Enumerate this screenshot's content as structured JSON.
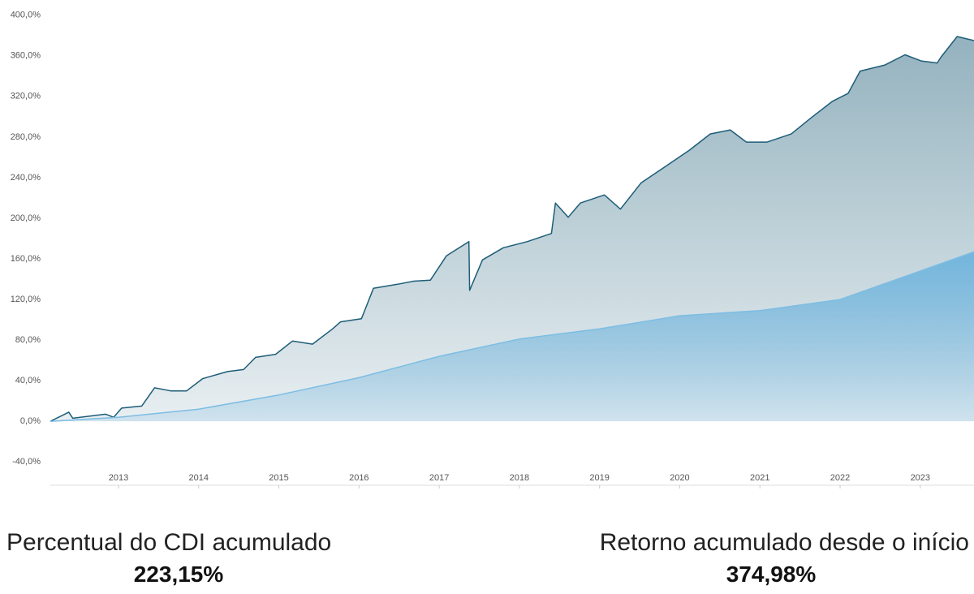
{
  "chart_data": {
    "type": "area",
    "xlim": [
      2012.15,
      2023.67
    ],
    "xticks": [
      2013,
      2014,
      2015,
      2016,
      2017,
      2018,
      2019,
      2020,
      2021,
      2022,
      2023
    ],
    "ylim": [
      -63,
      407
    ],
    "yticks": [
      {
        "value": -40,
        "label": "-40,0%"
      },
      {
        "value": 0,
        "label": "0,0%"
      },
      {
        "value": 40,
        "label": "40,0%"
      },
      {
        "value": 80,
        "label": "80,0%"
      },
      {
        "value": 120,
        "label": "120,0%"
      },
      {
        "value": 160,
        "label": "160,0%"
      },
      {
        "value": 200,
        "label": "200,0%"
      },
      {
        "value": 240,
        "label": "240,0%"
      },
      {
        "value": 280,
        "label": "280,0%"
      },
      {
        "value": 320,
        "label": "320,0%"
      },
      {
        "value": 360,
        "label": "360,0%"
      },
      {
        "value": 400,
        "label": "400,0%"
      }
    ],
    "grid": false,
    "series": [
      {
        "color": "#1d5d78",
        "fill": "#8eaebb",
        "x": [
          2012.15,
          2012.33,
          2012.38,
          2012.43,
          2012.84,
          2012.94,
          2013.04,
          2013.29,
          2013.45,
          2013.65,
          2013.85,
          2014.05,
          2014.36,
          2014.56,
          2014.71,
          2014.96,
          2015.17,
          2015.42,
          2015.67,
          2015.77,
          2016.03,
          2016.18,
          2016.48,
          2016.68,
          2016.89,
          2017.09,
          2017.37,
          2017.38,
          2017.54,
          2017.8,
          2018.1,
          2018.4,
          2018.45,
          2018.61,
          2018.76,
          2019.06,
          2019.26,
          2019.52,
          2019.82,
          2020.12,
          2020.38,
          2020.63,
          2020.83,
          2021.09,
          2021.39,
          2021.64,
          2021.9,
          2022.1,
          2022.25,
          2022.56,
          2022.81,
          2023.01,
          2023.21,
          2023.26,
          2023.46,
          2023.67
        ],
        "values": [
          0,
          7,
          9,
          3,
          7,
          4,
          13,
          15,
          33,
          30,
          30,
          42,
          49,
          51,
          63,
          66,
          79,
          76,
          91,
          98,
          101,
          131,
          135,
          138,
          139,
          163,
          177,
          129,
          159,
          171,
          177,
          185,
          215,
          201,
          215,
          223,
          209,
          235,
          251,
          267,
          283,
          287,
          275,
          275,
          283,
          299,
          315,
          323,
          345,
          351,
          361,
          355,
          353,
          359,
          379,
          375
        ]
      },
      {
        "color": "#7dbde3",
        "fill": "#6fb4dd",
        "x": [
          2012.15,
          2013,
          2014,
          2015,
          2016,
          2017,
          2018,
          2019,
          2020,
          2021,
          2022,
          2023,
          2023.67
        ],
        "values": [
          0,
          4,
          12,
          26,
          43,
          64,
          81,
          91,
          104,
          109,
          120,
          148,
          167
        ]
      }
    ],
    "stats": [
      {
        "label": "Percentual do CDI acumulado",
        "value": "223,15%"
      },
      {
        "label": "Retorno acumulado desde o início",
        "value": "374,98%"
      }
    ]
  }
}
